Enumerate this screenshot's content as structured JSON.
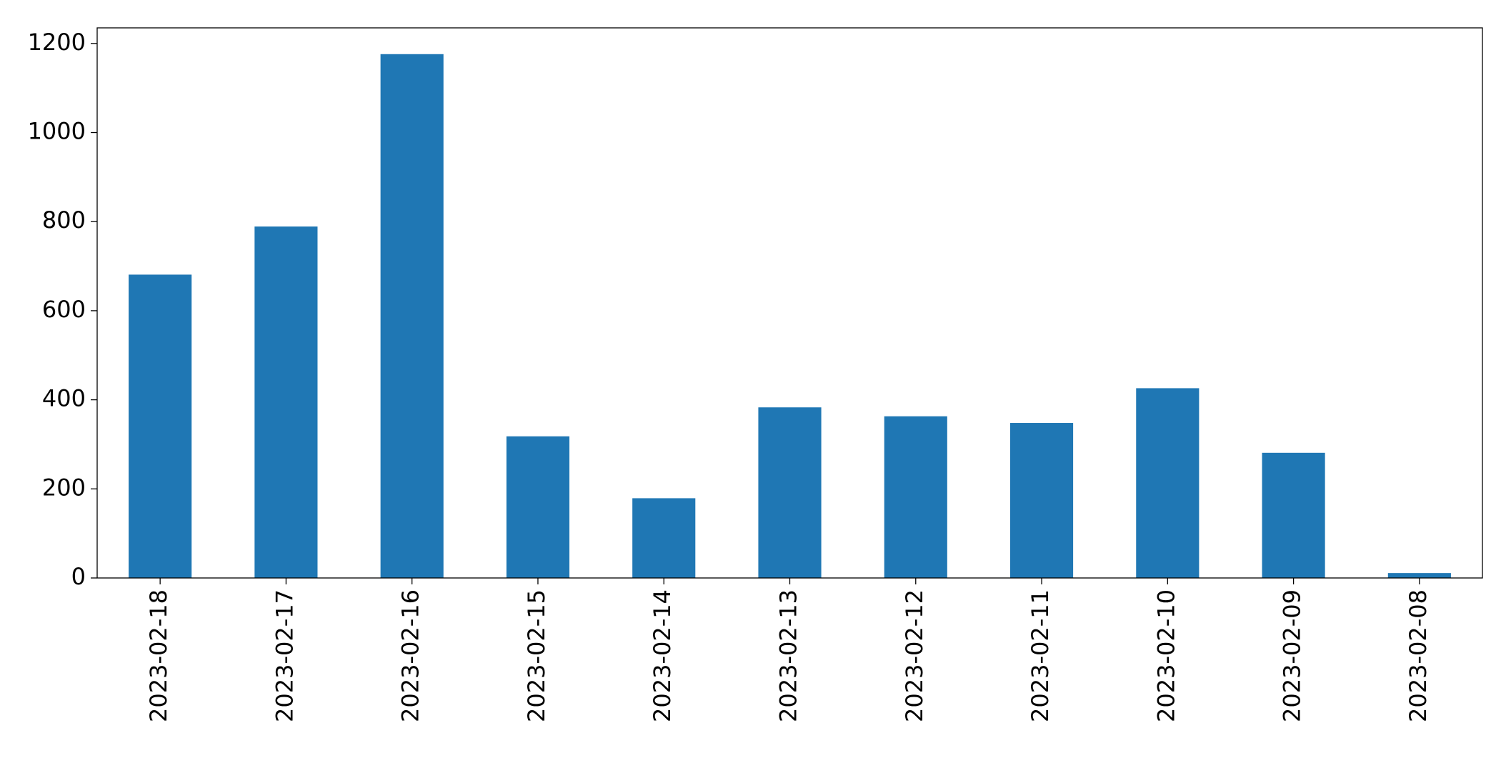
{
  "chart_data": {
    "type": "bar",
    "categories": [
      "2023-02-18",
      "2023-02-17",
      "2023-02-16",
      "2023-02-15",
      "2023-02-14",
      "2023-02-13",
      "2023-02-12",
      "2023-02-11",
      "2023-02-10",
      "2023-02-09",
      "2023-02-08"
    ],
    "values": [
      681,
      789,
      1176,
      318,
      179,
      383,
      363,
      348,
      426,
      281,
      11
    ],
    "color": "#1f77b4",
    "ylim": [
      0,
      1235
    ],
    "yticks": [
      0,
      200,
      400,
      600,
      800,
      1000,
      1200
    ],
    "grid": false
  }
}
